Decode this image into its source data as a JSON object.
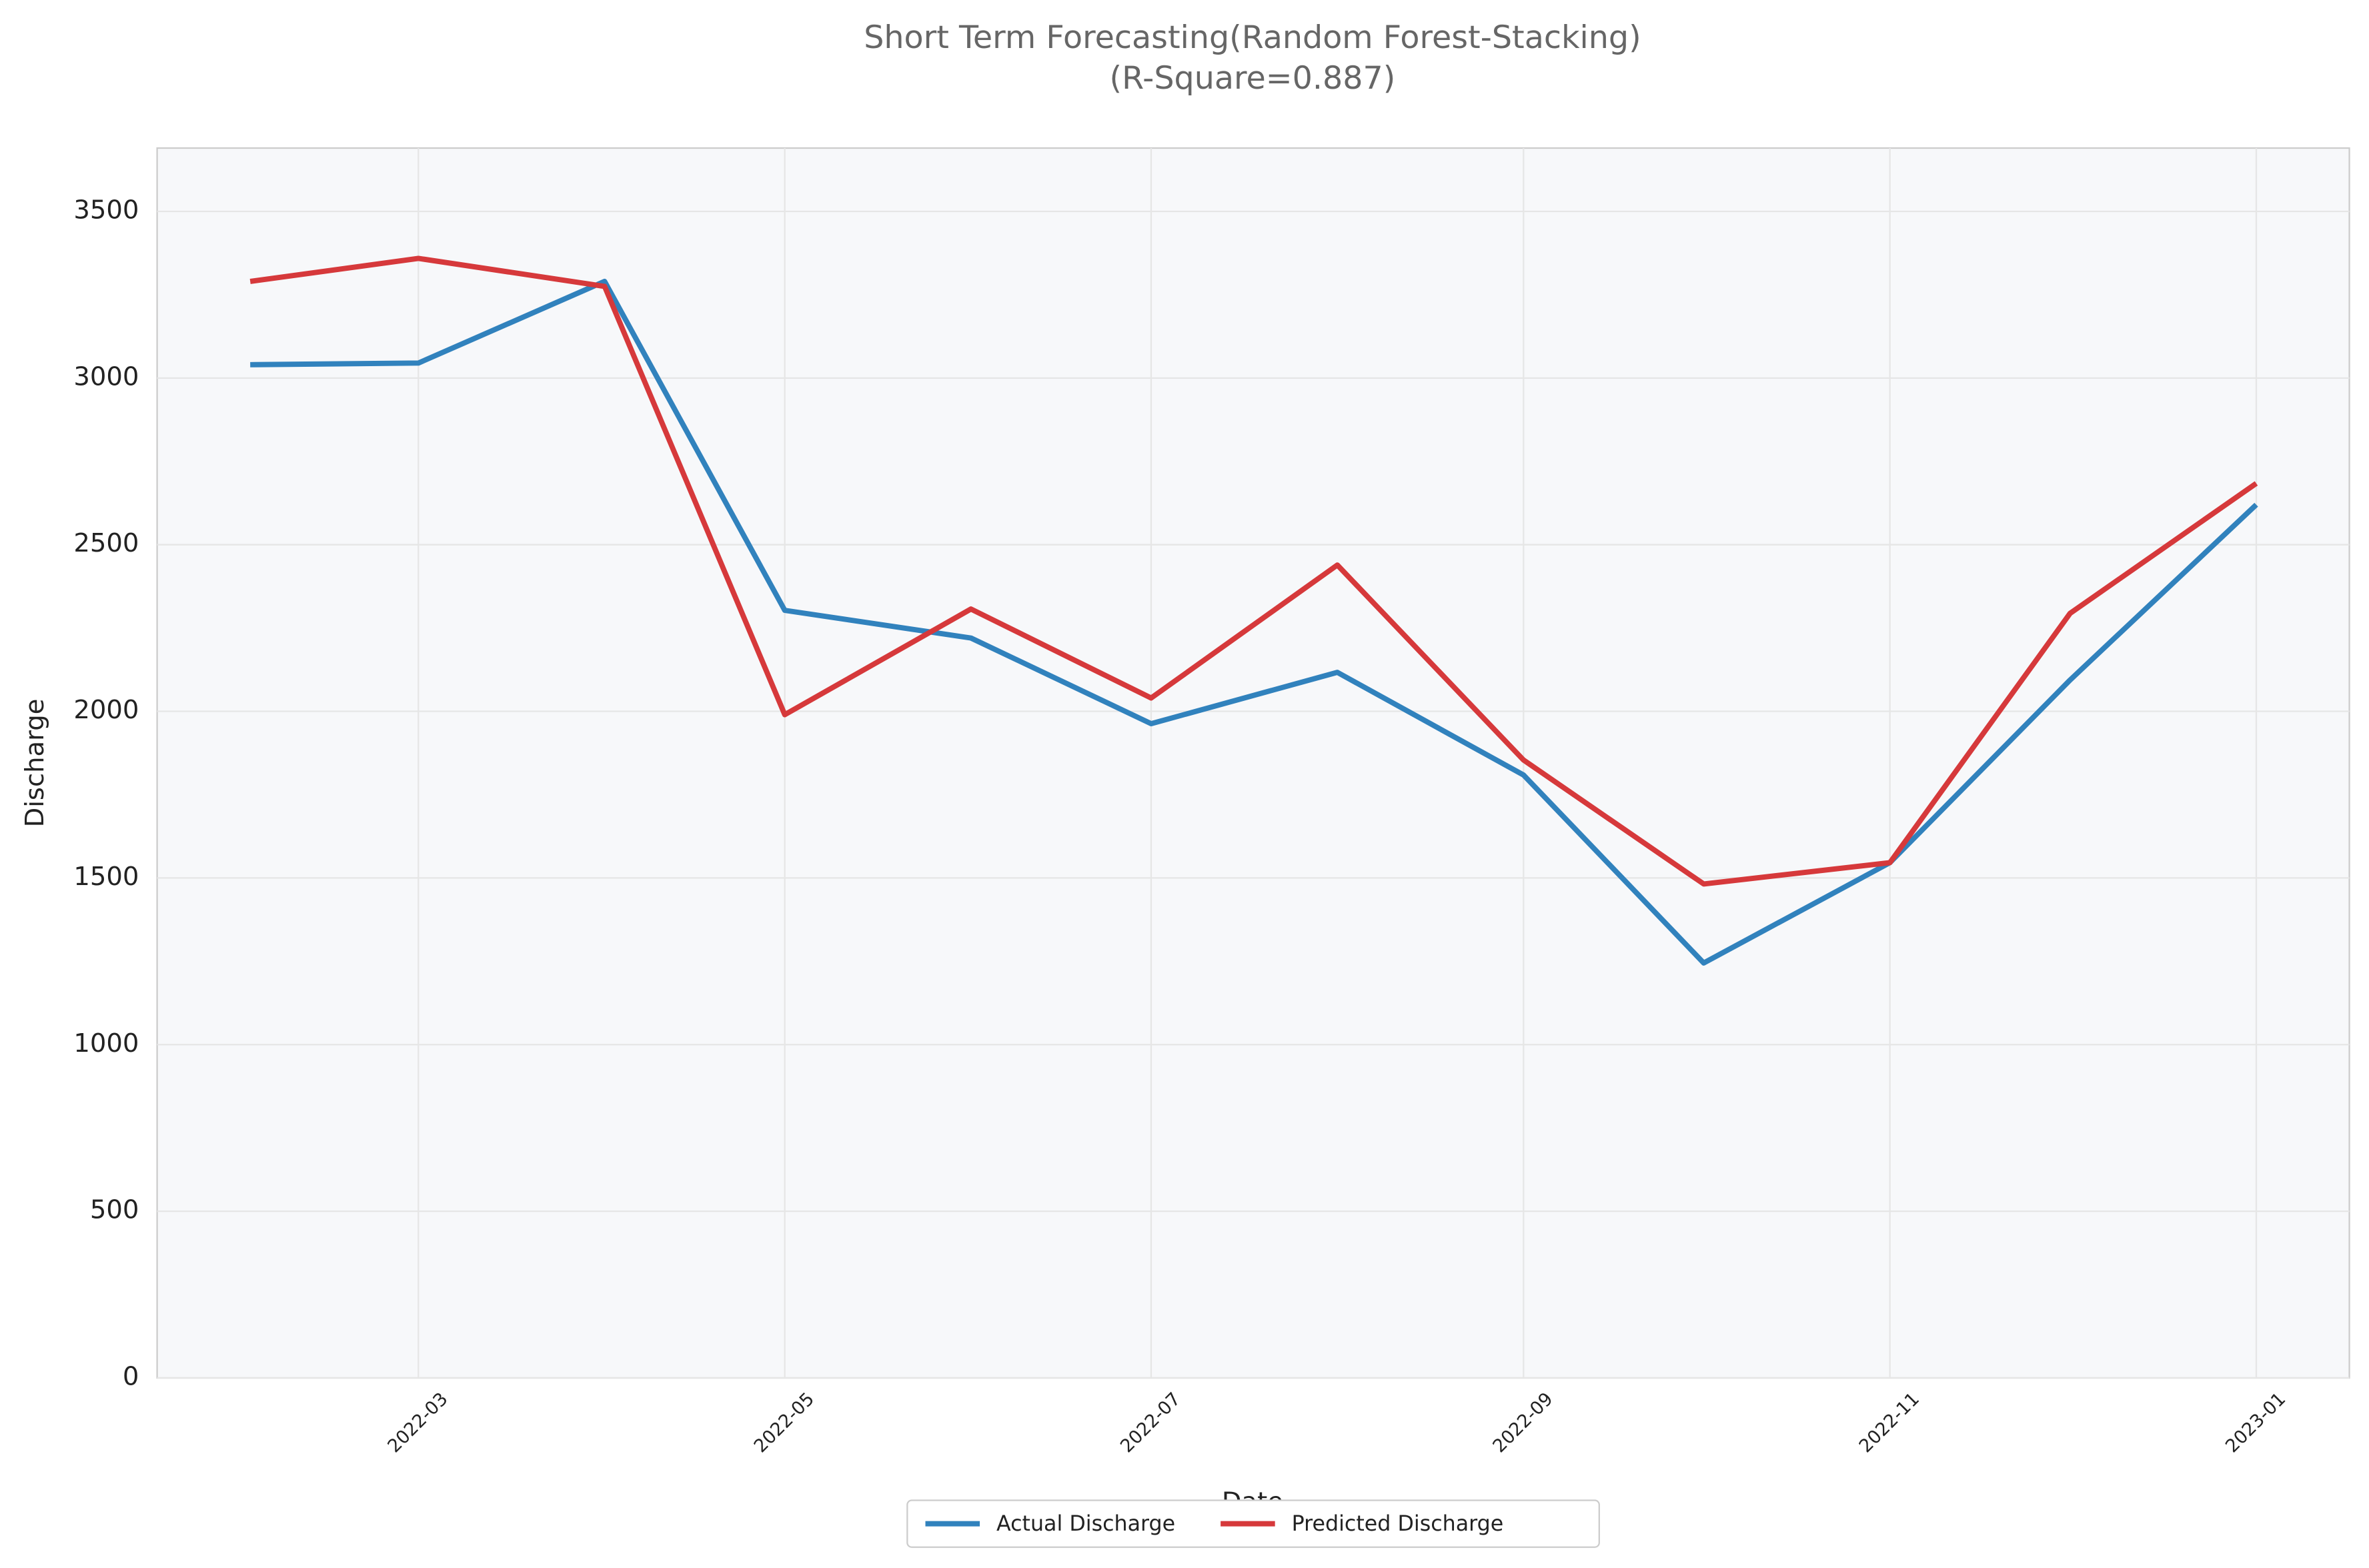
{
  "chart_data": {
    "type": "line",
    "title": "Short Term Forecasting(Random Forest-Stacking)",
    "subtitle": "(R-Square=0.887)",
    "x_label": "Date",
    "y_label": "Discharge",
    "x": [
      "2022-02",
      "2022-03",
      "2022-04",
      "2022-05",
      "2022-06",
      "2022-07",
      "2022-08",
      "2022-09",
      "2022-10",
      "2022-11",
      "2022-12",
      "2023-01"
    ],
    "series": [
      {
        "name": "Actual Discharge",
        "color": "#3182bd",
        "values": [
          3040,
          3045,
          3290,
          2303,
          2220,
          1963,
          2117,
          1809,
          1245,
          1546,
          2094,
          2620
        ]
      },
      {
        "name": "Predicted Discharge",
        "color": "#d6393b",
        "values": [
          3290,
          3359,
          3275,
          1990,
          2307,
          2040,
          2439,
          1854,
          1482,
          1546,
          2294,
          2684
        ]
      }
    ],
    "ylim": [
      0,
      3690
    ],
    "yticks": [
      0,
      500,
      1000,
      1500,
      2000,
      2500,
      3000,
      3500
    ],
    "xticks": [
      "2022-03",
      "2022-05",
      "2022-07",
      "2022-09",
      "2022-11",
      "2023-01"
    ],
    "grid": true,
    "legend": "lower center"
  }
}
